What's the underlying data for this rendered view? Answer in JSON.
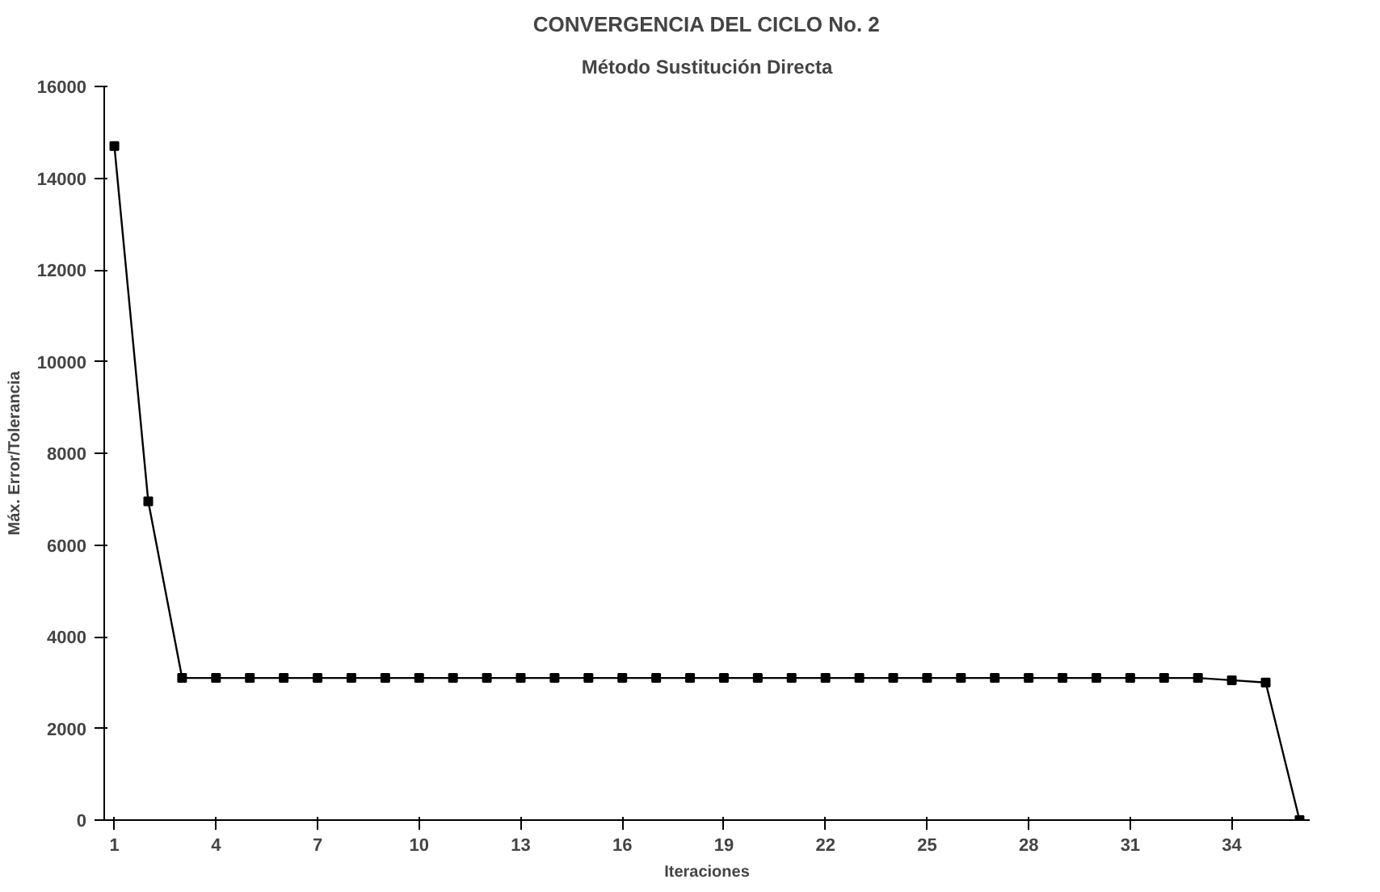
{
  "chart_data": {
    "type": "line",
    "title": "CONVERGENCIA DEL CICLO No. 2",
    "subtitle": "Método Sustitución Directa",
    "xlabel": "Iteraciones",
    "ylabel": "Máx. Error/Tolerancia",
    "categories": [
      "1",
      null,
      null,
      "4",
      null,
      null,
      "7",
      null,
      null,
      "10",
      null,
      null,
      "13",
      null,
      null,
      "16",
      null,
      null,
      "19",
      null,
      null,
      "22",
      null,
      null,
      "25",
      null,
      null,
      "28",
      null,
      null,
      "31",
      null,
      null,
      "34",
      null,
      null
    ],
    "series": [
      {
        "color": "#000000",
        "values": [
          14700,
          6950,
          3100,
          3100,
          3100,
          3100,
          3100,
          3100,
          3100,
          3100,
          3100,
          3100,
          3100,
          3100,
          3100,
          3100,
          3100,
          3100,
          3100,
          3100,
          3100,
          3100,
          3100,
          3100,
          3100,
          3100,
          3100,
          3100,
          3100,
          3100,
          3100,
          3100,
          3100,
          3050,
          3000,
          0
        ]
      }
    ],
    "ylim": [
      0,
      16000
    ],
    "yticks": [
      0,
      2000,
      4000,
      6000,
      8000,
      10000,
      12000,
      14000,
      16000
    ],
    "grid": false,
    "marker": "square",
    "line_style": "solid"
  }
}
